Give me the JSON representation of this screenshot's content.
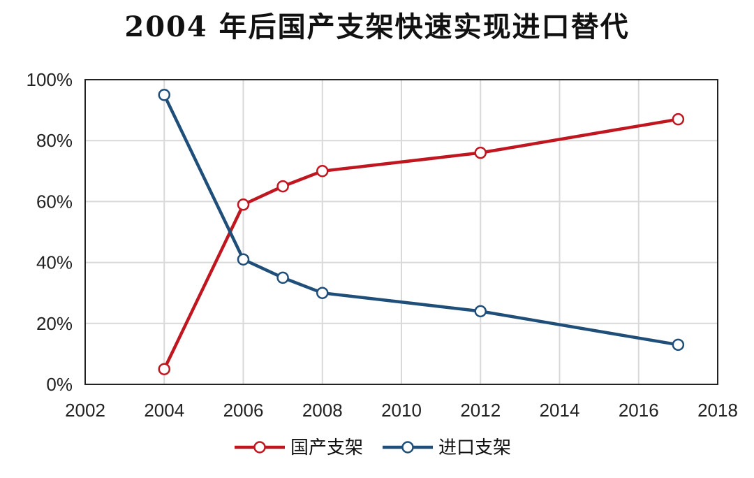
{
  "title": "2004 年后国产支架快速实现进口替代",
  "chart_data": {
    "type": "line",
    "title": "2004 年后国产支架快速实现进口替代",
    "xlabel": "",
    "ylabel": "",
    "xlim": [
      2002,
      2018
    ],
    "ylim": [
      0,
      100
    ],
    "x_ticks": [
      "2002",
      "2004",
      "2006",
      "2008",
      "2010",
      "2012",
      "2014",
      "2016",
      "2018"
    ],
    "y_ticks": [
      "0%",
      "20%",
      "40%",
      "60%",
      "80%",
      "100%"
    ],
    "grid": true,
    "legend_position": "bottom",
    "series": [
      {
        "name": "国产支架",
        "color": "#C0161F",
        "x": [
          2004,
          2006,
          2007,
          2008,
          2012,
          2017
        ],
        "values": [
          5,
          59,
          65,
          70,
          76,
          87
        ]
      },
      {
        "name": "进口支架",
        "color": "#1F4E79",
        "x": [
          2004,
          2006,
          2007,
          2008,
          2012,
          2017
        ],
        "values": [
          95,
          41,
          35,
          30,
          24,
          13
        ]
      }
    ]
  }
}
